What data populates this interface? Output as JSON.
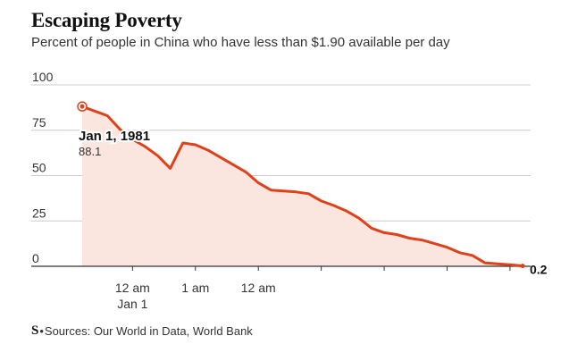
{
  "header": {
    "title": "Escaping Poverty",
    "subtitle": "Percent of people in China who have less than $1.90 available per day"
  },
  "footer": {
    "logo": "S",
    "source": "Sources: Our World in Data, World Bank"
  },
  "chart_data": {
    "type": "area",
    "title": "Escaping Poverty",
    "subtitle": "Percent of people in China who have less than $1.90 available per day",
    "xlabel": "",
    "ylabel": "",
    "ylim": [
      0,
      100
    ],
    "yticks": [
      0,
      25,
      50,
      75,
      100
    ],
    "xlim": [
      1981,
      2016
    ],
    "x_tick_positions": [
      1985,
      1990,
      1995,
      2000,
      2005,
      2010,
      2015
    ],
    "x_tick_labels": [
      [
        "12 am",
        "Jan 1"
      ],
      [
        "1 am"
      ],
      [
        "12 am"
      ],
      [],
      [],
      [],
      []
    ],
    "grid": true,
    "series": [
      {
        "values": [
          {
            "x": 1981,
            "y": 88.1
          },
          {
            "x": 1983,
            "y": 83
          },
          {
            "x": 1984,
            "y": 75.5
          },
          {
            "x": 1985,
            "y": 70
          },
          {
            "x": 1986,
            "y": 66
          },
          {
            "x": 1987,
            "y": 61
          },
          {
            "x": 1988,
            "y": 54
          },
          {
            "x": 1989,
            "y": 68
          },
          {
            "x": 1990,
            "y": 67
          },
          {
            "x": 1991,
            "y": 64
          },
          {
            "x": 1992,
            "y": 60
          },
          {
            "x": 1993,
            "y": 56
          },
          {
            "x": 1994,
            "y": 52
          },
          {
            "x": 1995,
            "y": 46
          },
          {
            "x": 1996,
            "y": 42
          },
          {
            "x": 1997,
            "y": 41.5
          },
          {
            "x": 1998,
            "y": 41
          },
          {
            "x": 1999,
            "y": 40
          },
          {
            "x": 2000,
            "y": 36
          },
          {
            "x": 2001,
            "y": 33.5
          },
          {
            "x": 2002,
            "y": 30.5
          },
          {
            "x": 2003,
            "y": 26.5
          },
          {
            "x": 2004,
            "y": 21
          },
          {
            "x": 2005,
            "y": 18.5
          },
          {
            "x": 2006,
            "y": 17.5
          },
          {
            "x": 2007,
            "y": 15.5
          },
          {
            "x": 2008,
            "y": 14.5
          },
          {
            "x": 2009,
            "y": 12.5
          },
          {
            "x": 2010,
            "y": 10.5
          },
          {
            "x": 2011,
            "y": 7.5
          },
          {
            "x": 2012,
            "y": 6
          },
          {
            "x": 2013,
            "y": 1.9
          },
          {
            "x": 2014,
            "y": 1.4
          },
          {
            "x": 2015,
            "y": 0.9
          },
          {
            "x": 2016,
            "y": 0.2
          }
        ]
      }
    ],
    "annotations": [
      {
        "label": "Jan 1, 1981",
        "value_label": "88.1",
        "x": 1981,
        "y": 88.1
      },
      {
        "label": "0.2",
        "x": 2016,
        "y": 0.2
      }
    ],
    "colors": {
      "line": "#e0411a",
      "fill": "#fbe6df",
      "grid": "#cccccc",
      "axis": "#333333"
    }
  }
}
